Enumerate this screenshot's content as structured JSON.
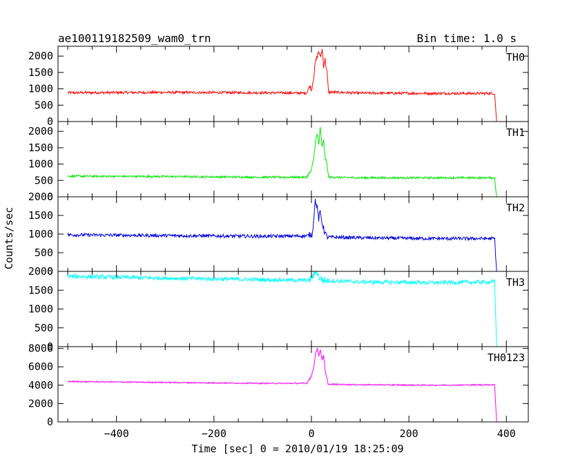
{
  "chart_data": {
    "type": "line",
    "title_left": "ae100119182509_wam0_trn",
    "title_right": "Bin time: 1.0 s",
    "xlabel": "Time [sec] 0 = 2010/01/19 18:25:09",
    "ylabel": "Counts/sec",
    "xlim": [
      -520,
      445
    ],
    "x_ticks": [
      -400,
      -200,
      0,
      200,
      400
    ],
    "grid": false,
    "x_start": -500,
    "x_end": 428,
    "series": [
      {
        "name": "TH0",
        "color": "#ff0000",
        "ylim": [
          0,
          2300
        ],
        "y_ticks": [
          0,
          500,
          1000,
          1500,
          2000
        ],
        "knots": [
          [
            -500,
            880
          ],
          [
            -300,
            890
          ],
          [
            -100,
            880
          ],
          [
            -10,
            870
          ],
          [
            -3,
            1100
          ],
          [
            0,
            950
          ],
          [
            5,
            1400
          ],
          [
            8,
            1800
          ],
          [
            12,
            2000
          ],
          [
            15,
            2150
          ],
          [
            18,
            1950
          ],
          [
            22,
            2200
          ],
          [
            25,
            1700
          ],
          [
            28,
            1900
          ],
          [
            32,
            1500
          ],
          [
            35,
            900
          ],
          [
            100,
            870
          ],
          [
            250,
            860
          ],
          [
            376,
            860
          ],
          [
            380,
            0
          ],
          [
            428,
            0
          ]
        ],
        "noise": 40
      },
      {
        "name": "TH1",
        "color": "#00e600",
        "ylim": [
          0,
          2300
        ],
        "y_ticks": [
          0,
          500,
          1000,
          1500,
          2000
        ],
        "knots": [
          [
            -500,
            630
          ],
          [
            -300,
            620
          ],
          [
            -100,
            600
          ],
          [
            -10,
            600
          ],
          [
            0,
            800
          ],
          [
            5,
            1200
          ],
          [
            8,
            1700
          ],
          [
            12,
            1900
          ],
          [
            15,
            1600
          ],
          [
            18,
            2100
          ],
          [
            22,
            1500
          ],
          [
            25,
            1750
          ],
          [
            28,
            1200
          ],
          [
            32,
            1000
          ],
          [
            35,
            600
          ],
          [
            100,
            580
          ],
          [
            250,
            580
          ],
          [
            376,
            580
          ],
          [
            380,
            0
          ],
          [
            428,
            0
          ]
        ],
        "noise": 32
      },
      {
        "name": "TH2",
        "color": "#0000e0",
        "ylim": [
          0,
          2000
        ],
        "y_ticks": [
          0,
          500,
          1000,
          1500,
          2000
        ],
        "knots": [
          [
            -500,
            980
          ],
          [
            -300,
            960
          ],
          [
            -100,
            940
          ],
          [
            -10,
            950
          ],
          [
            2,
            1000
          ],
          [
            5,
            1500
          ],
          [
            8,
            1900
          ],
          [
            12,
            1700
          ],
          [
            15,
            1400
          ],
          [
            18,
            1600
          ],
          [
            22,
            1300
          ],
          [
            26,
            1100
          ],
          [
            32,
            920
          ],
          [
            100,
            900
          ],
          [
            250,
            880
          ],
          [
            376,
            880
          ],
          [
            380,
            0
          ],
          [
            428,
            0
          ]
        ],
        "noise": 45
      },
      {
        "name": "TH3",
        "color": "#00ffff",
        "ylim": [
          0,
          2000
        ],
        "y_ticks": [
          0,
          500,
          1000,
          1500,
          2000
        ],
        "knots": [
          [
            -500,
            1870
          ],
          [
            -300,
            1820
          ],
          [
            -100,
            1780
          ],
          [
            -5,
            1760
          ],
          [
            5,
            1900
          ],
          [
            10,
            2050
          ],
          [
            15,
            1850
          ],
          [
            25,
            1760
          ],
          [
            100,
            1720
          ],
          [
            250,
            1700
          ],
          [
            376,
            1720
          ],
          [
            380,
            0
          ],
          [
            428,
            0
          ]
        ],
        "noise": 55
      },
      {
        "name": "TH0123",
        "color": "#ff00ff",
        "ylim": [
          0,
          8200
        ],
        "y_ticks": [
          0,
          2000,
          4000,
          6000,
          8000
        ],
        "knots": [
          [
            -500,
            4400
          ],
          [
            -300,
            4300
          ],
          [
            -100,
            4200
          ],
          [
            -10,
            4200
          ],
          [
            0,
            5000
          ],
          [
            5,
            6000
          ],
          [
            8,
            7400
          ],
          [
            12,
            8000
          ],
          [
            15,
            7200
          ],
          [
            18,
            7900
          ],
          [
            22,
            6800
          ],
          [
            25,
            7200
          ],
          [
            28,
            5600
          ],
          [
            32,
            4600
          ],
          [
            35,
            4100
          ],
          [
            100,
            4050
          ],
          [
            250,
            4000
          ],
          [
            376,
            4050
          ],
          [
            380,
            0
          ],
          [
            428,
            0
          ]
        ],
        "noise": 70
      }
    ]
  }
}
